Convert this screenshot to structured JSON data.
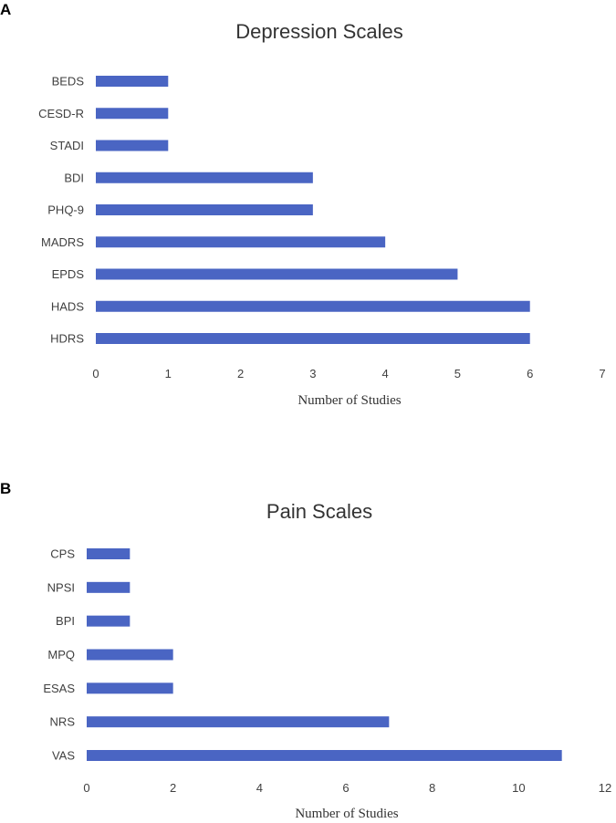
{
  "colors": {
    "bar": "#4a65c3"
  },
  "chart_data": [
    {
      "panel": "A",
      "type": "bar",
      "orientation": "horizontal",
      "title": "Depression Scales",
      "xlabel": "Number of Studies",
      "ylabel": "",
      "xlim": [
        0,
        7
      ],
      "xticks": [
        0,
        1,
        2,
        3,
        4,
        5,
        6,
        7
      ],
      "grid": false,
      "categories": [
        "BEDS",
        "CESD-R",
        "STADI",
        "BDI",
        "PHQ-9",
        "MADRS",
        "EPDS",
        "HADS",
        "HDRS"
      ],
      "values": [
        1,
        1,
        1,
        3,
        3,
        4,
        5,
        6,
        6
      ]
    },
    {
      "panel": "B",
      "type": "bar",
      "orientation": "horizontal",
      "title": "Pain Scales",
      "xlabel": "Number of Studies",
      "ylabel": "",
      "xlim": [
        0,
        12
      ],
      "xticks": [
        0,
        2,
        4,
        6,
        8,
        10,
        12
      ],
      "grid": false,
      "categories": [
        "CPS",
        "NPSI",
        "BPI",
        "MPQ",
        "ESAS",
        "NRS",
        "VAS"
      ],
      "values": [
        1,
        1,
        1,
        2,
        2,
        7,
        11
      ]
    }
  ]
}
